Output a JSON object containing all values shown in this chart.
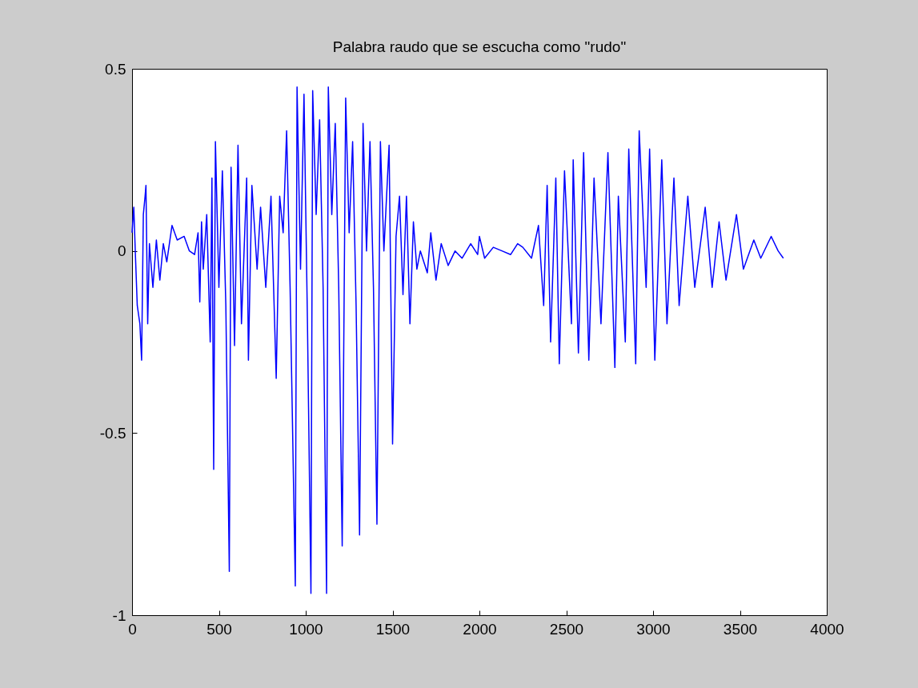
{
  "chart_data": {
    "type": "line",
    "title": "Palabra raudo que se escucha como \"rudo\"",
    "x": [
      0,
      10,
      20,
      30,
      45,
      55,
      65,
      75,
      80,
      90,
      100,
      120,
      140,
      160,
      180,
      200,
      230,
      260,
      300,
      330,
      360,
      380,
      390,
      400,
      410,
      430,
      450,
      460,
      470,
      480,
      500,
      520,
      540,
      560,
      570,
      590,
      610,
      630,
      660,
      670,
      690,
      720,
      740,
      770,
      800,
      830,
      850,
      870,
      890,
      910,
      940,
      950,
      970,
      990,
      1010,
      1030,
      1040,
      1060,
      1080,
      1100,
      1120,
      1130,
      1150,
      1170,
      1190,
      1210,
      1230,
      1250,
      1270,
      1290,
      1310,
      1330,
      1350,
      1370,
      1390,
      1410,
      1430,
      1450,
      1480,
      1500,
      1520,
      1540,
      1560,
      1580,
      1600,
      1620,
      1640,
      1660,
      1700,
      1720,
      1750,
      1780,
      1820,
      1860,
      1900,
      1950,
      1990,
      2000,
      2030,
      2080,
      2130,
      2180,
      2220,
      2250,
      2300,
      2340,
      2370,
      2390,
      2410,
      2440,
      2460,
      2490,
      2530,
      2540,
      2570,
      2600,
      2630,
      2660,
      2700,
      2740,
      2780,
      2800,
      2840,
      2860,
      2900,
      2920,
      2960,
      2980,
      3010,
      3050,
      3080,
      3120,
      3150,
      3200,
      3240,
      3300,
      3340,
      3380,
      3420,
      3480,
      3520,
      3580,
      3620,
      3680,
      3720,
      3750
    ],
    "series": [
      {
        "color": "#0000ff",
        "values": [
          0.05,
          0.12,
          -0.02,
          -0.15,
          -0.2,
          -0.3,
          0.1,
          0.15,
          0.18,
          -0.2,
          0.02,
          -0.1,
          0.03,
          -0.08,
          0.02,
          -0.03,
          0.07,
          0.03,
          0.04,
          0.0,
          -0.01,
          0.05,
          -0.14,
          0.08,
          -0.05,
          0.1,
          -0.25,
          0.2,
          -0.6,
          0.3,
          -0.1,
          0.22,
          -0.15,
          -0.88,
          0.23,
          -0.26,
          0.29,
          -0.2,
          0.2,
          -0.3,
          0.18,
          -0.05,
          0.12,
          -0.1,
          0.15,
          -0.35,
          0.15,
          0.05,
          0.33,
          -0.1,
          -0.92,
          0.45,
          -0.05,
          0.43,
          -0.2,
          -0.94,
          0.44,
          0.1,
          0.36,
          -0.1,
          -0.94,
          0.45,
          0.1,
          0.35,
          -0.1,
          -0.81,
          0.42,
          0.05,
          0.3,
          -0.15,
          -0.78,
          0.35,
          0.0,
          0.3,
          -0.1,
          -0.75,
          0.3,
          0.0,
          0.29,
          -0.53,
          0.04,
          0.15,
          -0.12,
          0.15,
          -0.2,
          0.08,
          -0.05,
          0.0,
          -0.06,
          0.05,
          -0.08,
          0.02,
          -0.04,
          0.0,
          -0.02,
          0.02,
          -0.01,
          0.04,
          -0.02,
          0.01,
          0.0,
          -0.01,
          0.02,
          0.01,
          -0.02,
          0.07,
          -0.15,
          0.18,
          -0.25,
          0.2,
          -0.31,
          0.22,
          -0.2,
          0.25,
          -0.28,
          0.27,
          -0.3,
          0.2,
          -0.2,
          0.27,
          -0.32,
          0.15,
          -0.25,
          0.28,
          -0.31,
          0.33,
          -0.1,
          0.28,
          -0.3,
          0.25,
          -0.2,
          0.2,
          -0.15,
          0.15,
          -0.1,
          0.12,
          -0.1,
          0.08,
          -0.08,
          0.1,
          -0.05,
          0.03,
          -0.02,
          0.04,
          0.0,
          -0.02
        ]
      }
    ],
    "xlim": [
      0,
      4000
    ],
    "xticks": [
      0,
      500,
      1000,
      1500,
      2000,
      2500,
      3000,
      3500,
      4000
    ],
    "ylim": [
      -1,
      0.5
    ],
    "yticks": [
      -1,
      -0.5,
      0,
      0.5
    ],
    "grid": false,
    "legend": false
  }
}
